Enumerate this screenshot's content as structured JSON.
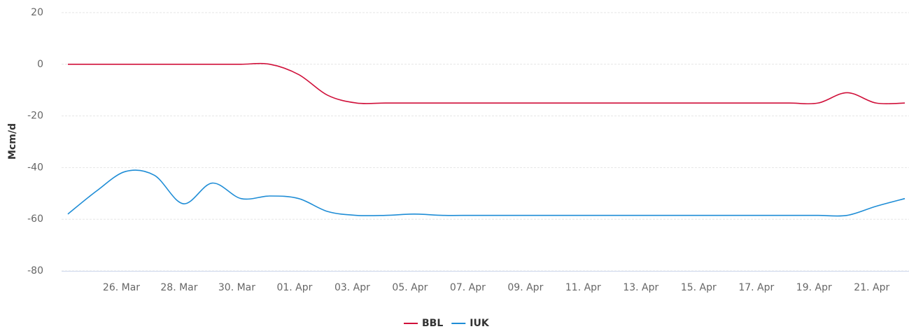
{
  "chart_data": {
    "type": "line",
    "y_label": "Mcm/d",
    "categories": [
      null,
      null,
      "26. Mar",
      null,
      "28. Mar",
      null,
      "30. Mar",
      null,
      "01. Apr",
      null,
      "03. Apr",
      null,
      "05. Apr",
      null,
      "07. Apr",
      null,
      "09. Apr",
      null,
      "11. Apr",
      null,
      "13. Apr",
      null,
      "15. Apr",
      null,
      "17. Apr",
      null,
      "19. Apr",
      null,
      "21. Apr",
      null
    ],
    "series": [
      {
        "name": "BBL",
        "color": "#d0103a",
        "values": [
          0,
          0,
          0,
          0,
          0,
          0,
          0,
          0,
          -4,
          -12,
          -15,
          -15,
          -15,
          -15,
          -15,
          -15,
          -15,
          -15,
          -15,
          -15,
          -15,
          -15,
          -15,
          -15,
          -15,
          -15,
          -15,
          -11,
          -15,
          -15
        ]
      },
      {
        "name": "IUK",
        "color": "#1f8dd6",
        "values": [
          -58,
          -49,
          -41.5,
          -43,
          -54,
          -46,
          -52,
          -51,
          -52,
          -57,
          -58.5,
          -58.5,
          -58,
          -58.5,
          -58.5,
          -58.5,
          -58.5,
          -58.5,
          -58.5,
          -58.5,
          -58.5,
          -58.5,
          -58.5,
          -58.5,
          -58.5,
          -58.5,
          -58.5,
          -58.5,
          -55,
          -52
        ]
      }
    ],
    "ylim": [
      -80,
      20
    ],
    "yticks": [
      -80,
      -60,
      -40,
      -20,
      0,
      20
    ],
    "grid": true,
    "legend": "bottom"
  }
}
